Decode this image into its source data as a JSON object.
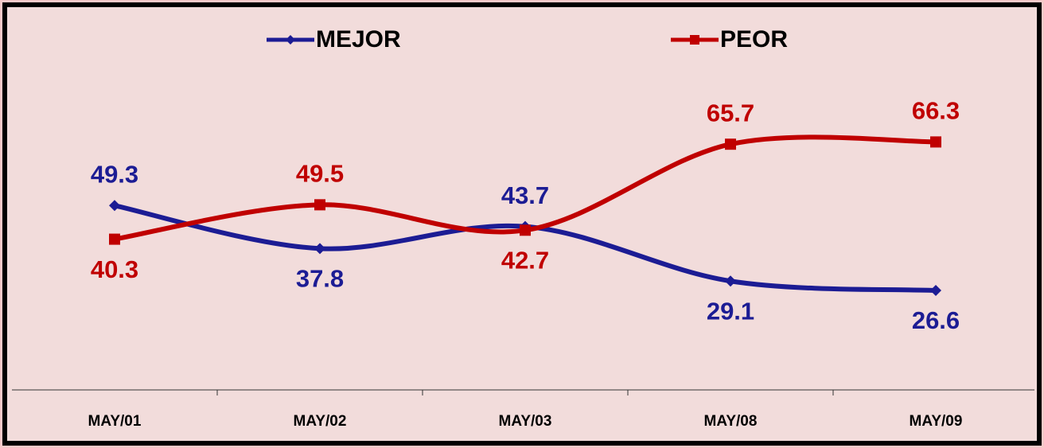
{
  "chart_data": {
    "type": "line",
    "categories": [
      "MAY/01",
      "MAY/02",
      "MAY/03",
      "MAY/08",
      "MAY/09"
    ],
    "series": [
      {
        "name": "MEJOR",
        "color": "#1c1c94",
        "values": [
          49.3,
          37.8,
          43.7,
          29.1,
          26.6
        ]
      },
      {
        "name": "PEOR",
        "color": "#c00000",
        "values": [
          40.3,
          49.5,
          42.7,
          65.7,
          66.3
        ]
      }
    ],
    "ylim": [
      0,
      100
    ]
  }
}
